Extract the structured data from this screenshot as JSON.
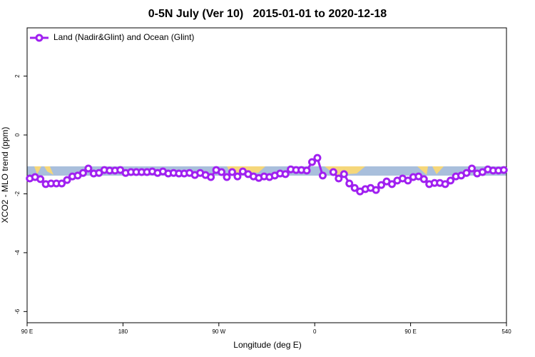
{
  "chart_data": {
    "type": "line",
    "title": "0-5N July (Ver 10)   2015-01-01 to 2020-12-18",
    "x_label": "Longitude (deg E)",
    "y_label": "XCO2 - MLO trend (ppm)",
    "x": [
      92.5,
      97.5,
      102.5,
      107.5,
      112.5,
      117.5,
      122.5,
      127.5,
      132.5,
      137.5,
      142.5,
      147.5,
      152.5,
      157.5,
      162.5,
      167.5,
      172.5,
      177.5,
      182.5,
      187.5,
      192.5,
      197.5,
      202.5,
      207.5,
      212.5,
      217.5,
      222.5,
      227.5,
      232.5,
      237.5,
      242.5,
      247.5,
      252.5,
      257.5,
      262.5,
      267.5,
      272.5,
      277.5,
      282.5,
      287.5,
      292.5,
      297.5,
      302.5,
      307.5,
      312.5,
      317.5,
      322.5,
      327.5,
      332.5,
      337.5,
      342.5,
      347.5,
      352.5,
      357.5,
      362.5,
      367.5,
      372.5,
      377.5,
      382.5,
      387.5,
      392.5,
      397.5,
      402.5,
      407.5,
      412.5,
      417.5,
      422.5,
      427.5,
      432.5,
      437.5,
      442.5,
      447.5,
      452.5,
      457.5,
      462.5,
      467.5,
      472.5,
      477.5,
      482.5,
      487.5,
      492.5,
      497.5,
      502.5,
      507.5,
      512.5,
      517.5,
      522.5,
      527.5,
      532.5,
      537.5
    ],
    "series": [
      {
        "name": "Land (Nadir&Glint) and Ocean (Glint)",
        "color": "#a020f0",
        "values": [
          -1.48,
          -1.43,
          -1.5,
          -1.67,
          -1.65,
          -1.65,
          -1.65,
          -1.53,
          -1.41,
          -1.38,
          -1.29,
          -1.14,
          -1.31,
          -1.29,
          -1.19,
          -1.21,
          -1.21,
          -1.19,
          -1.29,
          -1.26,
          -1.26,
          -1.26,
          -1.26,
          -1.24,
          -1.29,
          -1.24,
          -1.31,
          -1.29,
          -1.31,
          -1.31,
          -1.29,
          -1.36,
          -1.29,
          -1.36,
          -1.43,
          -1.19,
          -1.26,
          -1.43,
          -1.26,
          -1.41,
          -1.24,
          -1.33,
          -1.41,
          -1.46,
          -1.41,
          -1.43,
          -1.38,
          -1.31,
          -1.33,
          -1.17,
          -1.19,
          -1.19,
          -1.21,
          -0.92,
          -0.78,
          -1.38,
          null,
          -1.26,
          -1.48,
          -1.33,
          -1.65,
          -1.8,
          -1.92,
          -1.84,
          -1.8,
          -1.87,
          -1.7,
          -1.58,
          -1.67,
          -1.55,
          -1.48,
          -1.55,
          -1.43,
          -1.41,
          -1.5,
          -1.67,
          -1.63,
          -1.63,
          -1.67,
          -1.55,
          -1.41,
          -1.38,
          -1.29,
          -1.14,
          -1.31,
          -1.26,
          -1.17,
          -1.21,
          -1.21,
          -1.19
        ]
      }
    ],
    "xlim": [
      90,
      540
    ],
    "xticks": [
      {
        "value": 90,
        "label": "90 E"
      },
      180,
      {
        "value": 270,
        "label": "90 W"
      },
      {
        "value": 360,
        "label": "0"
      },
      {
        "value": 450,
        "label": "90 E"
      },
      540
    ],
    "ylim": [
      -6.38,
      3.64
    ],
    "yticks": [
      -6,
      -4,
      -2,
      0,
      2
    ],
    "legend": "top-left"
  }
}
